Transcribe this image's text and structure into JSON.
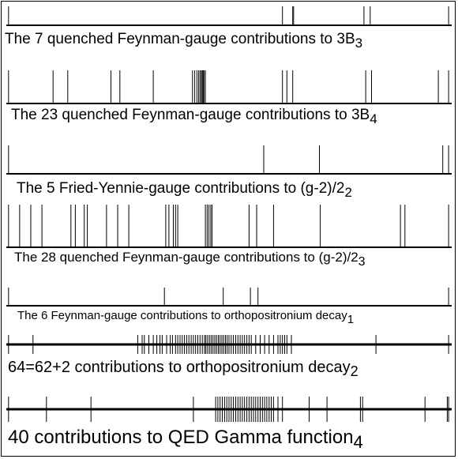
{
  "colors": {
    "line": "#000000",
    "background": "#ffffff"
  },
  "panels": [
    {
      "caption": "The 7 quenched Feynman-gauge contributions to 3B",
      "subscript": "3",
      "marks": [
        0.005,
        0.62,
        0.643,
        0.645,
        0.803,
        0.817,
        0.993
      ]
    },
    {
      "caption": "The 23 quenched Feynman-gauge contributions to 3B",
      "subscript": "4",
      "marks": [
        0.005,
        0.105,
        0.138,
        0.235,
        0.255,
        0.33,
        0.418,
        0.423,
        0.428,
        0.432,
        0.435,
        0.438,
        0.44,
        0.442,
        0.444,
        0.447,
        0.62,
        0.63,
        0.643,
        0.807,
        0.82,
        0.97,
        0.993
      ]
    },
    {
      "caption": "The 5 Fried-Yennie-gauge contributions to (g-2)/2",
      "subscript": "2",
      "marks": [
        0.005,
        0.578,
        0.703,
        0.98,
        0.993
      ]
    },
    {
      "caption": "The 28 quenched Feynman-gauge contributions to (g-2)/2",
      "subscript": "3",
      "marks": [
        0.005,
        0.03,
        0.055,
        0.08,
        0.145,
        0.155,
        0.175,
        0.182,
        0.225,
        0.25,
        0.275,
        0.358,
        0.365,
        0.375,
        0.38,
        0.385,
        0.447,
        0.451,
        0.455,
        0.459,
        0.462,
        0.545,
        0.562,
        0.6,
        0.705,
        0.885,
        0.895,
        0.993
      ]
    },
    {
      "caption": "The 6 Feynman-gauge contributions to orthopositronium decay",
      "subscript": "1",
      "marks": [
        0.005,
        0.355,
        0.487,
        0.548,
        0.565,
        0.993
      ]
    },
    {
      "caption": "64=62+2 contributions to orthopositronium decay",
      "subscript": "2",
      "marks": [
        0.005,
        0.06,
        0.295,
        0.305,
        0.31,
        0.32,
        0.33,
        0.338,
        0.345,
        0.35,
        0.36,
        0.368,
        0.373,
        0.38,
        0.385,
        0.39,
        0.395,
        0.4,
        0.405,
        0.41,
        0.415,
        0.42,
        0.425,
        0.43,
        0.435,
        0.44,
        0.445,
        0.448,
        0.452,
        0.456,
        0.46,
        0.464,
        0.468,
        0.472,
        0.476,
        0.48,
        0.484,
        0.488,
        0.492,
        0.496,
        0.5,
        0.505,
        0.51,
        0.515,
        0.52,
        0.525,
        0.53,
        0.535,
        0.54,
        0.545,
        0.55,
        0.56,
        0.57,
        0.58,
        0.59,
        0.6,
        0.61,
        0.615,
        0.62,
        0.625,
        0.63,
        0.64,
        0.83,
        0.993
      ]
    },
    {
      "caption": "40 contributions to QED Gamma function",
      "subscript": "4",
      "marks": [
        0.005,
        0.09,
        0.19,
        0.42,
        0.47,
        0.475,
        0.48,
        0.485,
        0.49,
        0.495,
        0.5,
        0.505,
        0.51,
        0.515,
        0.52,
        0.525,
        0.53,
        0.535,
        0.54,
        0.545,
        0.55,
        0.555,
        0.56,
        0.565,
        0.57,
        0.575,
        0.58,
        0.585,
        0.59,
        0.595,
        0.6,
        0.61,
        0.62,
        0.68,
        0.72,
        0.795,
        0.8,
        0.94,
        0.99,
        0.993
      ]
    }
  ]
}
